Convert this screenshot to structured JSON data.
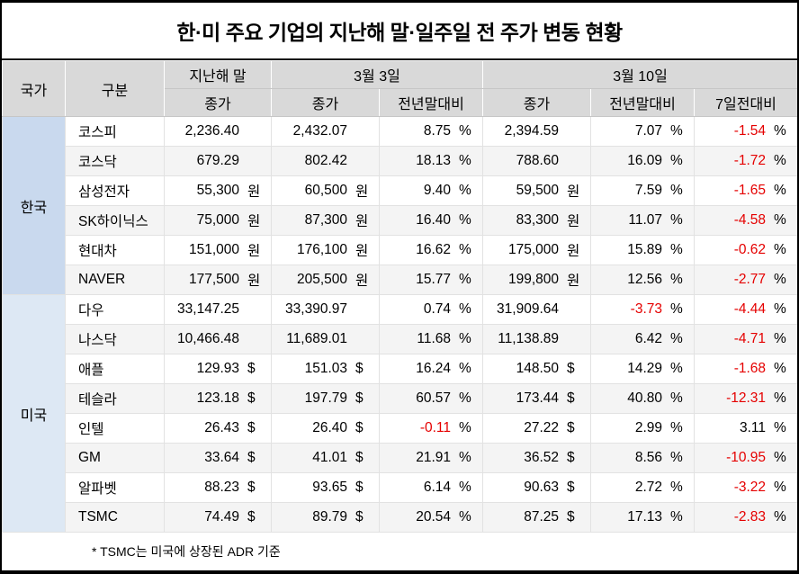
{
  "title": "한·미 주요 기업의 지난해 말·일주일 전 주가 변동 현황",
  "footnote": "* TSMC는 미국에 상장된 ADR 기준",
  "colors": {
    "negative": "#e50000",
    "header_bg": "#d9d9d9",
    "korea_bg": "#c9d9ee",
    "usa_bg": "#dde8f4",
    "stripe_bg": "#f4f4f4"
  },
  "header": {
    "country": "국가",
    "category": "구분",
    "last_year_end": "지난해 말",
    "march3": "3월 3일",
    "march10": "3월 10일",
    "close": "종가",
    "vs_year_end": "전년말대비",
    "vs_7days": "7일전대비"
  },
  "groups": [
    {
      "country": "한국",
      "style": "korea",
      "rows": [
        {
          "name": "코스피",
          "prev": [
            "2,236.40",
            ""
          ],
          "m3": [
            "2,432.07",
            ""
          ],
          "m3chg": [
            "8.75",
            "%"
          ],
          "m10": [
            "2,394.59",
            ""
          ],
          "m10chg": [
            "7.07",
            "%"
          ],
          "wk": [
            "-1.54",
            "%"
          ]
        },
        {
          "name": "코스닥",
          "prev": [
            "679.29",
            ""
          ],
          "m3": [
            "802.42",
            ""
          ],
          "m3chg": [
            "18.13",
            "%"
          ],
          "m10": [
            "788.60",
            ""
          ],
          "m10chg": [
            "16.09",
            "%"
          ],
          "wk": [
            "-1.72",
            "%"
          ]
        },
        {
          "name": "삼성전자",
          "prev": [
            "55,300",
            "원"
          ],
          "m3": [
            "60,500",
            "원"
          ],
          "m3chg": [
            "9.40",
            "%"
          ],
          "m10": [
            "59,500",
            "원"
          ],
          "m10chg": [
            "7.59",
            "%"
          ],
          "wk": [
            "-1.65",
            "%"
          ]
        },
        {
          "name": "SK하이닉스",
          "prev": [
            "75,000",
            "원"
          ],
          "m3": [
            "87,300",
            "원"
          ],
          "m3chg": [
            "16.40",
            "%"
          ],
          "m10": [
            "83,300",
            "원"
          ],
          "m10chg": [
            "11.07",
            "%"
          ],
          "wk": [
            "-4.58",
            "%"
          ]
        },
        {
          "name": "현대차",
          "prev": [
            "151,000",
            "원"
          ],
          "m3": [
            "176,100",
            "원"
          ],
          "m3chg": [
            "16.62",
            "%"
          ],
          "m10": [
            "175,000",
            "원"
          ],
          "m10chg": [
            "15.89",
            "%"
          ],
          "wk": [
            "-0.62",
            "%"
          ]
        },
        {
          "name": "NAVER",
          "prev": [
            "177,500",
            "원"
          ],
          "m3": [
            "205,500",
            "원"
          ],
          "m3chg": [
            "15.77",
            "%"
          ],
          "m10": [
            "199,800",
            "원"
          ],
          "m10chg": [
            "12.56",
            "%"
          ],
          "wk": [
            "-2.77",
            "%"
          ]
        }
      ]
    },
    {
      "country": "미국",
      "style": "usa",
      "rows": [
        {
          "name": "다우",
          "prev": [
            "33,147.25",
            ""
          ],
          "m3": [
            "33,390.97",
            ""
          ],
          "m3chg": [
            "0.74",
            "%"
          ],
          "m10": [
            "31,909.64",
            ""
          ],
          "m10chg": [
            "-3.73",
            "%"
          ],
          "wk": [
            "-4.44",
            "%"
          ]
        },
        {
          "name": "나스닥",
          "prev": [
            "10,466.48",
            ""
          ],
          "m3": [
            "11,689.01",
            ""
          ],
          "m3chg": [
            "11.68",
            "%"
          ],
          "m10": [
            "11,138.89",
            ""
          ],
          "m10chg": [
            "6.42",
            "%"
          ],
          "wk": [
            "-4.71",
            "%"
          ]
        },
        {
          "name": "애플",
          "prev": [
            "129.93",
            "$"
          ],
          "m3": [
            "151.03",
            "$"
          ],
          "m3chg": [
            "16.24",
            "%"
          ],
          "m10": [
            "148.50",
            "$"
          ],
          "m10chg": [
            "14.29",
            "%"
          ],
          "wk": [
            "-1.68",
            "%"
          ]
        },
        {
          "name": "테슬라",
          "prev": [
            "123.18",
            "$"
          ],
          "m3": [
            "197.79",
            "$"
          ],
          "m3chg": [
            "60.57",
            "%"
          ],
          "m10": [
            "173.44",
            "$"
          ],
          "m10chg": [
            "40.80",
            "%"
          ],
          "wk": [
            "-12.31",
            "%"
          ]
        },
        {
          "name": "인텔",
          "prev": [
            "26.43",
            "$"
          ],
          "m3": [
            "26.40",
            "$"
          ],
          "m3chg": [
            "-0.11",
            "%"
          ],
          "m10": [
            "27.22",
            "$"
          ],
          "m10chg": [
            "2.99",
            "%"
          ],
          "wk": [
            "3.11",
            "%"
          ]
        },
        {
          "name": "GM",
          "prev": [
            "33.64",
            "$"
          ],
          "m3": [
            "41.01",
            "$"
          ],
          "m3chg": [
            "21.91",
            "%"
          ],
          "m10": [
            "36.52",
            "$"
          ],
          "m10chg": [
            "8.56",
            "%"
          ],
          "wk": [
            "-10.95",
            "%"
          ]
        },
        {
          "name": "알파벳",
          "prev": [
            "88.23",
            "$"
          ],
          "m3": [
            "93.65",
            "$"
          ],
          "m3chg": [
            "6.14",
            "%"
          ],
          "m10": [
            "90.63",
            "$"
          ],
          "m10chg": [
            "2.72",
            "%"
          ],
          "wk": [
            "-3.22",
            "%"
          ]
        },
        {
          "name": "TSMC",
          "prev": [
            "74.49",
            "$"
          ],
          "m3": [
            "89.79",
            "$"
          ],
          "m3chg": [
            "20.54",
            "%"
          ],
          "m10": [
            "87.25",
            "$"
          ],
          "m10chg": [
            "17.13",
            "%"
          ],
          "wk": [
            "-2.83",
            "%"
          ]
        }
      ]
    }
  ],
  "chart_data": {
    "type": "table",
    "title": "한·미 주요 기업의 지난해 말·일주일 전 주가 변동 현황",
    "footnote": "* TSMC는 미국에 상장된 ADR 기준",
    "columns": [
      "국가",
      "구분",
      "지난해 말 종가",
      "3월 3일 종가",
      "3월 3일 전년말대비 %",
      "3월 10일 종가",
      "3월 10일 전년말대비 %",
      "3월 10일 7일전대비 %"
    ],
    "units": {
      "한국 주식": "원",
      "미국 주식": "$",
      "지수": ""
    },
    "rows": [
      [
        "한국",
        "코스피",
        2236.4,
        2432.07,
        8.75,
        2394.59,
        7.07,
        -1.54
      ],
      [
        "한국",
        "코스닥",
        679.29,
        802.42,
        18.13,
        788.6,
        16.09,
        -1.72
      ],
      [
        "한국",
        "삼성전자(원)",
        55300,
        60500,
        9.4,
        59500,
        7.59,
        -1.65
      ],
      [
        "한국",
        "SK하이닉스(원)",
        75000,
        87300,
        16.4,
        83300,
        11.07,
        -4.58
      ],
      [
        "한국",
        "현대차(원)",
        151000,
        176100,
        16.62,
        175000,
        15.89,
        -0.62
      ],
      [
        "한국",
        "NAVER(원)",
        177500,
        205500,
        15.77,
        199800,
        12.56,
        -2.77
      ],
      [
        "미국",
        "다우",
        33147.25,
        33390.97,
        0.74,
        31909.64,
        -3.73,
        -4.44
      ],
      [
        "미국",
        "나스닥",
        10466.48,
        11689.01,
        11.68,
        11138.89,
        6.42,
        -4.71
      ],
      [
        "미국",
        "애플($)",
        129.93,
        151.03,
        16.24,
        148.5,
        14.29,
        -1.68
      ],
      [
        "미국",
        "테슬라($)",
        123.18,
        197.79,
        60.57,
        173.44,
        40.8,
        -12.31
      ],
      [
        "미국",
        "인텔($)",
        26.43,
        26.4,
        -0.11,
        27.22,
        2.99,
        3.11
      ],
      [
        "미국",
        "GM($)",
        33.64,
        41.01,
        21.91,
        36.52,
        8.56,
        -10.95
      ],
      [
        "미국",
        "알파벳($)",
        88.23,
        93.65,
        6.14,
        90.63,
        2.72,
        -3.22
      ],
      [
        "미국",
        "TSMC($)",
        74.49,
        89.79,
        20.54,
        87.25,
        17.13,
        -2.83
      ]
    ]
  }
}
